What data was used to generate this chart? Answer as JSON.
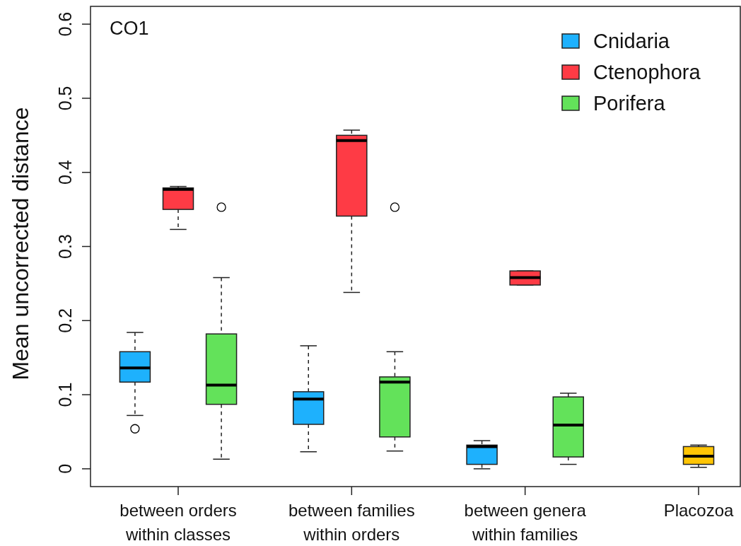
{
  "chart_data": {
    "type": "box",
    "title": "CO1",
    "ylabel": "Mean uncorrected distance",
    "categories": [
      "between orders\nwithin classes",
      "between families\nwithin orders",
      "between genera\nwithin families",
      "Placozoa"
    ],
    "ylim": [
      -0.024,
      0.624
    ],
    "yticks": [
      0,
      0.1,
      0.2,
      0.3,
      0.4,
      0.5,
      0.6
    ],
    "legend": "top right",
    "grid": false,
    "series": [
      {
        "name": "Cnidaria",
        "color": "#1eb1fd",
        "boxes": [
          {
            "low": 0.072,
            "q1": 0.117,
            "median": 0.136,
            "q3": 0.158,
            "high": 0.184,
            "outliers": [
              0.054
            ]
          },
          {
            "low": 0.023,
            "q1": 0.06,
            "median": 0.094,
            "q3": 0.104,
            "high": 0.166
          },
          {
            "low": 0,
            "q1": 0.006,
            "median": 0.03,
            "q3": 0.032,
            "high": 0.038
          },
          null
        ]
      },
      {
        "name": "Ctenophora",
        "color": "#fe3b45",
        "boxes": [
          {
            "low": 0.323,
            "q1": 0.35,
            "median": 0.377,
            "q3": 0.379,
            "high": 0.381
          },
          {
            "low": 0.238,
            "q1": 0.341,
            "median": 0.443,
            "q3": 0.45,
            "high": 0.457
          },
          {
            "low": 0.248,
            "q1": 0.248,
            "median": 0.258,
            "q3": 0.267,
            "high": 0.267
          },
          null
        ]
      },
      {
        "name": "Porifera",
        "color": "#63e25a",
        "boxes": [
          {
            "low": 0.013,
            "q1": 0.087,
            "median": 0.113,
            "q3": 0.182,
            "high": 0.258,
            "outliers": [
              0.353
            ]
          },
          {
            "low": 0.024,
            "q1": 0.043,
            "median": 0.117,
            "q3": 0.124,
            "high": 0.158,
            "outliers": [
              0.353
            ]
          },
          {
            "low": 0.006,
            "q1": 0.016,
            "median": 0.059,
            "q3": 0.097,
            "high": 0.102
          },
          null
        ]
      },
      {
        "color": "#ffc505",
        "boxes": [
          null,
          null,
          null,
          {
            "low": 0.002,
            "q1": 0.006,
            "median": 0.017,
            "q3": 0.03,
            "high": 0.032
          }
        ]
      }
    ]
  }
}
